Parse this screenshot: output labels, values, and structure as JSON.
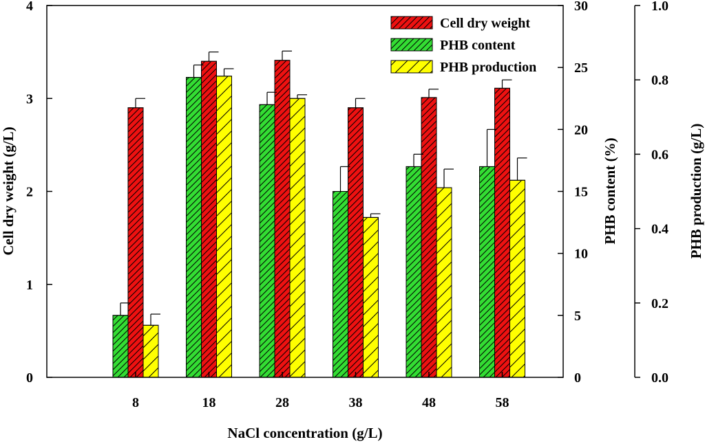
{
  "chart_data": {
    "type": "bar",
    "xlabel": "NaCl concentration (g/L)",
    "categories": [
      "8",
      "18",
      "28",
      "38",
      "48",
      "58"
    ],
    "axes": {
      "left": {
        "label": "Cell dry weight (g/L)",
        "ylim": [
          0,
          4
        ],
        "ticks": [
          "0",
          "1",
          "2",
          "3",
          "4"
        ],
        "tick_values": [
          0,
          1,
          2,
          3,
          4
        ]
      },
      "right1": {
        "label": "PHB content (%)",
        "ylim": [
          0,
          30
        ],
        "ticks": [
          "0",
          "5",
          "10",
          "15",
          "20",
          "25",
          "30"
        ],
        "tick_values": [
          0,
          5,
          10,
          15,
          20,
          25,
          30
        ]
      },
      "right2": {
        "label": "PHB production (g/L)",
        "ylim": [
          0,
          1.0
        ],
        "ticks": [
          "0.0",
          "0.2",
          "0.4",
          "0.6",
          "0.8",
          "1.0"
        ],
        "tick_values": [
          0,
          0.2,
          0.4,
          0.6,
          0.8,
          1.0
        ]
      }
    },
    "series": [
      {
        "key": "phb_content",
        "name": "PHB content",
        "axis": "right1",
        "color": "#33dd33",
        "values": [
          5.0,
          24.2,
          22.0,
          15.0,
          17.0,
          17.0
        ],
        "errors": [
          1.0,
          1.0,
          1.0,
          2.0,
          1.0,
          3.0
        ]
      },
      {
        "key": "cdw",
        "name": "Cell dry weight",
        "axis": "left",
        "color": "#ee1111",
        "values": [
          2.9,
          3.4,
          3.41,
          2.9,
          3.01,
          3.11
        ],
        "errors": [
          0.1,
          0.1,
          0.1,
          0.1,
          0.09,
          0.09
        ]
      },
      {
        "key": "phb_production",
        "name": "PHB production",
        "axis": "right2",
        "color": "#ffff00",
        "values": [
          0.14,
          0.81,
          0.75,
          0.43,
          0.51,
          0.53
        ],
        "errors": [
          0.03,
          0.02,
          0.01,
          0.01,
          0.05,
          0.06
        ]
      }
    ],
    "legend": {
      "position": "top-right",
      "entries": [
        {
          "key": "cdw",
          "label": "Cell dry weight"
        },
        {
          "key": "phb_content",
          "label": "PHB content"
        },
        {
          "key": "phb_production",
          "label": "PHB production"
        }
      ]
    }
  }
}
